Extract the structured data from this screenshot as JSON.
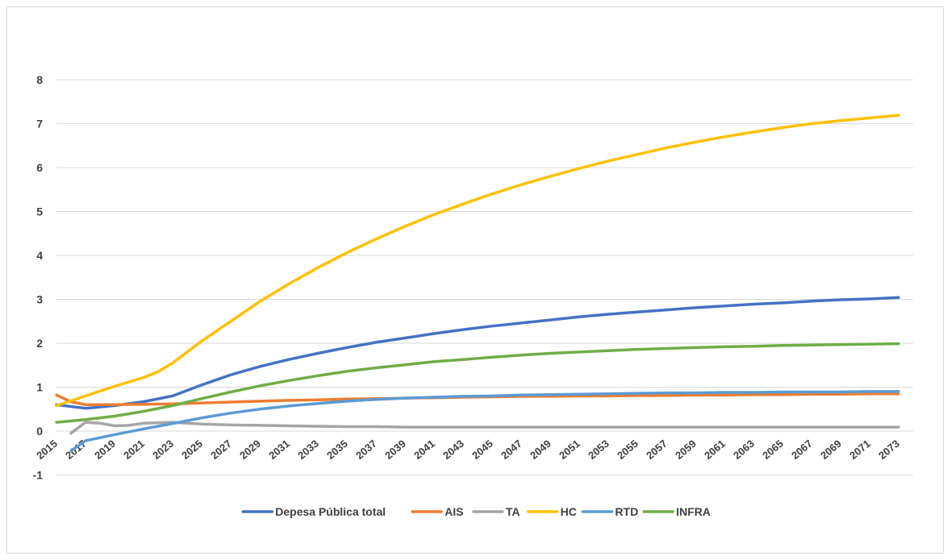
{
  "chart_data": {
    "type": "line",
    "title": "",
    "xlabel": "",
    "ylabel": "",
    "x_start": 2015,
    "x_end": 2074,
    "x_tick_labels": [
      "2015",
      "2017",
      "2019",
      "2021",
      "2023",
      "2025",
      "2027",
      "2029",
      "2031",
      "2033",
      "2035",
      "2037",
      "2039",
      "2041",
      "2043",
      "2045",
      "2047",
      "2049",
      "2051",
      "2053",
      "2055",
      "2057",
      "2059",
      "2061",
      "2063",
      "2065",
      "2067",
      "2069",
      "2071",
      "2073"
    ],
    "y_ticks": [
      -1,
      0,
      1,
      2,
      3,
      4,
      5,
      6,
      7,
      8
    ],
    "ylim": [
      -1,
      8.5
    ],
    "grid": true,
    "legend_position": "bottom",
    "series": [
      {
        "name": "Depesa Pública total",
        "color": "#4472C4",
        "points": [
          [
            2015,
            0.6
          ],
          [
            2017,
            0.52
          ],
          [
            2019,
            0.58
          ],
          [
            2021,
            0.67
          ],
          [
            2023,
            0.8
          ],
          [
            2025,
            1.05
          ],
          [
            2027,
            1.28
          ],
          [
            2029,
            1.47
          ],
          [
            2031,
            1.63
          ],
          [
            2033,
            1.77
          ],
          [
            2035,
            1.9
          ],
          [
            2037,
            2.02
          ],
          [
            2039,
            2.12
          ],
          [
            2041,
            2.22
          ],
          [
            2043,
            2.31
          ],
          [
            2045,
            2.39
          ],
          [
            2047,
            2.46
          ],
          [
            2049,
            2.53
          ],
          [
            2051,
            2.6
          ],
          [
            2053,
            2.66
          ],
          [
            2055,
            2.71
          ],
          [
            2057,
            2.76
          ],
          [
            2059,
            2.81
          ],
          [
            2061,
            2.85
          ],
          [
            2063,
            2.89
          ],
          [
            2065,
            2.92
          ],
          [
            2067,
            2.96
          ],
          [
            2069,
            2.99
          ],
          [
            2071,
            3.01
          ],
          [
            2073,
            3.04
          ]
        ]
      },
      {
        "name": "AIS",
        "color": "#ED7D31",
        "points": [
          [
            2015,
            0.82
          ],
          [
            2016,
            0.67
          ],
          [
            2017,
            0.6
          ],
          [
            2019,
            0.6
          ],
          [
            2021,
            0.61
          ],
          [
            2023,
            0.62
          ],
          [
            2025,
            0.64
          ],
          [
            2027,
            0.66
          ],
          [
            2029,
            0.68
          ],
          [
            2031,
            0.7
          ],
          [
            2033,
            0.71
          ],
          [
            2035,
            0.73
          ],
          [
            2037,
            0.74
          ],
          [
            2039,
            0.75
          ],
          [
            2041,
            0.76
          ],
          [
            2043,
            0.77
          ],
          [
            2045,
            0.78
          ],
          [
            2047,
            0.79
          ],
          [
            2049,
            0.79
          ],
          [
            2051,
            0.8
          ],
          [
            2053,
            0.8
          ],
          [
            2055,
            0.81
          ],
          [
            2057,
            0.81
          ],
          [
            2059,
            0.82
          ],
          [
            2061,
            0.82
          ],
          [
            2063,
            0.83
          ],
          [
            2065,
            0.83
          ],
          [
            2067,
            0.84
          ],
          [
            2069,
            0.84
          ],
          [
            2071,
            0.85
          ],
          [
            2073,
            0.85
          ]
        ]
      },
      {
        "name": "TA",
        "color": "#A5A5A5",
        "points": [
          [
            2016,
            -0.05
          ],
          [
            2017,
            0.2
          ],
          [
            2018,
            0.18
          ],
          [
            2019,
            0.12
          ],
          [
            2020,
            0.13
          ],
          [
            2021,
            0.18
          ],
          [
            2023,
            0.2
          ],
          [
            2025,
            0.16
          ],
          [
            2027,
            0.14
          ],
          [
            2029,
            0.13
          ],
          [
            2031,
            0.12
          ],
          [
            2033,
            0.11
          ],
          [
            2035,
            0.1
          ],
          [
            2037,
            0.1
          ],
          [
            2039,
            0.09
          ],
          [
            2041,
            0.09
          ],
          [
            2043,
            0.09
          ],
          [
            2045,
            0.09
          ],
          [
            2047,
            0.09
          ],
          [
            2049,
            0.09
          ],
          [
            2051,
            0.09
          ],
          [
            2053,
            0.09
          ],
          [
            2055,
            0.09
          ],
          [
            2057,
            0.09
          ],
          [
            2059,
            0.09
          ],
          [
            2061,
            0.09
          ],
          [
            2063,
            0.09
          ],
          [
            2065,
            0.09
          ],
          [
            2067,
            0.09
          ],
          [
            2069,
            0.09
          ],
          [
            2071,
            0.09
          ],
          [
            2073,
            0.09
          ]
        ]
      },
      {
        "name": "HC",
        "color": "#FFC000",
        "points": [
          [
            2015,
            0.58
          ],
          [
            2017,
            0.8
          ],
          [
            2019,
            1.02
          ],
          [
            2021,
            1.22
          ],
          [
            2022,
            1.35
          ],
          [
            2023,
            1.55
          ],
          [
            2025,
            2.05
          ],
          [
            2027,
            2.5
          ],
          [
            2029,
            2.95
          ],
          [
            2031,
            3.35
          ],
          [
            2033,
            3.72
          ],
          [
            2035,
            4.06
          ],
          [
            2037,
            4.37
          ],
          [
            2039,
            4.66
          ],
          [
            2041,
            4.93
          ],
          [
            2043,
            5.17
          ],
          [
            2045,
            5.4
          ],
          [
            2047,
            5.61
          ],
          [
            2049,
            5.8
          ],
          [
            2051,
            5.98
          ],
          [
            2053,
            6.15
          ],
          [
            2055,
            6.3
          ],
          [
            2057,
            6.45
          ],
          [
            2059,
            6.58
          ],
          [
            2061,
            6.7
          ],
          [
            2063,
            6.81
          ],
          [
            2065,
            6.91
          ],
          [
            2067,
            7.0
          ],
          [
            2069,
            7.07
          ],
          [
            2071,
            7.13
          ],
          [
            2073,
            7.19
          ]
        ]
      },
      {
        "name": "RTD",
        "color": "#5B9BD5",
        "points": [
          [
            2016,
            -0.45
          ],
          [
            2017,
            -0.22
          ],
          [
            2019,
            -0.08
          ],
          [
            2021,
            0.05
          ],
          [
            2023,
            0.17
          ],
          [
            2025,
            0.3
          ],
          [
            2027,
            0.41
          ],
          [
            2029,
            0.5
          ],
          [
            2031,
            0.57
          ],
          [
            2033,
            0.63
          ],
          [
            2035,
            0.68
          ],
          [
            2037,
            0.72
          ],
          [
            2039,
            0.75
          ],
          [
            2041,
            0.77
          ],
          [
            2043,
            0.79
          ],
          [
            2045,
            0.8
          ],
          [
            2047,
            0.82
          ],
          [
            2049,
            0.83
          ],
          [
            2051,
            0.84
          ],
          [
            2053,
            0.85
          ],
          [
            2055,
            0.86
          ],
          [
            2057,
            0.87
          ],
          [
            2059,
            0.87
          ],
          [
            2061,
            0.88
          ],
          [
            2063,
            0.88
          ],
          [
            2065,
            0.89
          ],
          [
            2067,
            0.89
          ],
          [
            2069,
            0.89
          ],
          [
            2071,
            0.9
          ],
          [
            2073,
            0.9
          ]
        ]
      },
      {
        "name": "INFRA",
        "color": "#70AD47",
        "points": [
          [
            2015,
            0.2
          ],
          [
            2017,
            0.26
          ],
          [
            2019,
            0.34
          ],
          [
            2021,
            0.45
          ],
          [
            2023,
            0.58
          ],
          [
            2025,
            0.74
          ],
          [
            2027,
            0.89
          ],
          [
            2029,
            1.03
          ],
          [
            2031,
            1.15
          ],
          [
            2033,
            1.26
          ],
          [
            2035,
            1.36
          ],
          [
            2037,
            1.44
          ],
          [
            2039,
            1.51
          ],
          [
            2041,
            1.58
          ],
          [
            2043,
            1.63
          ],
          [
            2045,
            1.68
          ],
          [
            2047,
            1.73
          ],
          [
            2049,
            1.77
          ],
          [
            2051,
            1.8
          ],
          [
            2053,
            1.83
          ],
          [
            2055,
            1.86
          ],
          [
            2057,
            1.88
          ],
          [
            2059,
            1.9
          ],
          [
            2061,
            1.92
          ],
          [
            2063,
            1.93
          ],
          [
            2065,
            1.95
          ],
          [
            2067,
            1.96
          ],
          [
            2069,
            1.97
          ],
          [
            2071,
            1.98
          ],
          [
            2073,
            1.99
          ]
        ]
      }
    ]
  }
}
